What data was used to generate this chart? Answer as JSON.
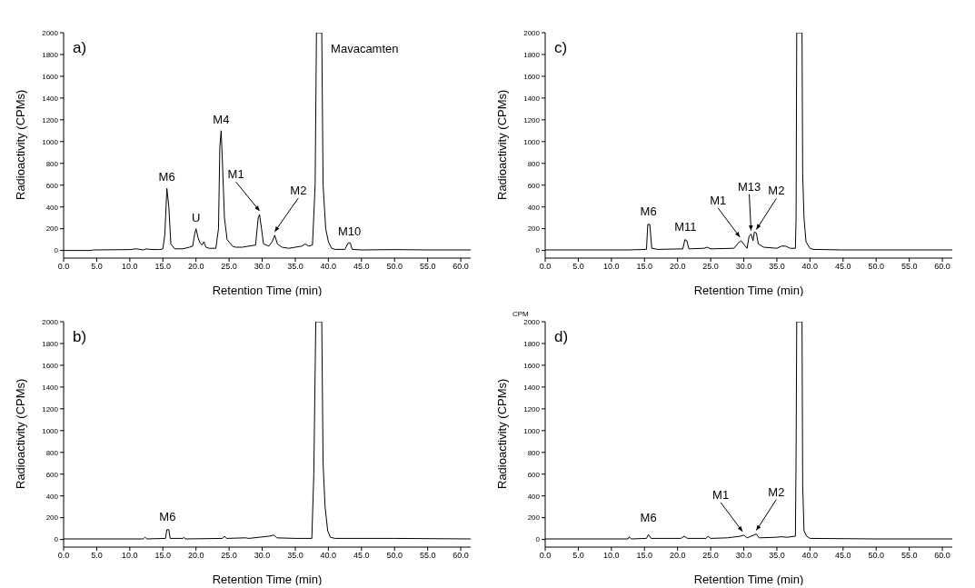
{
  "chart_data": [
    {
      "type": "line",
      "color": "#000000",
      "marker": "none",
      "xlabel": "Retention Time (min)",
      "ylabel": "Radioactivity (CPMs)",
      "xlim": [
        0,
        61.5
      ],
      "ylim": [
        -70,
        2000
      ],
      "xticks": [
        {
          "value": 0,
          "label": "0.0"
        },
        {
          "value": 5,
          "label": "5.0"
        },
        {
          "value": 10,
          "label": "10.0"
        },
        {
          "value": 15,
          "label": "15.0"
        },
        {
          "value": 20,
          "label": "20.0"
        },
        {
          "value": 25,
          "label": "25.0"
        },
        {
          "value": 30,
          "label": "30.0"
        },
        {
          "value": 35,
          "label": "35.0"
        },
        {
          "value": 40,
          "label": "40.0"
        },
        {
          "value": 45,
          "label": "45.0"
        },
        {
          "value": 50,
          "label": "50.0"
        },
        {
          "value": 55,
          "label": "55.0"
        },
        {
          "value": 60,
          "label": "60.0"
        }
      ],
      "yticks": [
        0,
        200,
        400,
        600,
        800,
        1000,
        1200,
        1400,
        1600,
        1800,
        2000
      ],
      "x": [
        0,
        4,
        4.5,
        10,
        11,
        12,
        12.5,
        13,
        14.5,
        15,
        15.3,
        15.6,
        15.9,
        16.2,
        16.8,
        18,
        19,
        19.5,
        19.8,
        20,
        20.3,
        20.6,
        20.9,
        21.2,
        21.5,
        22,
        23,
        23.4,
        23.6,
        23.8,
        24,
        24.3,
        24.7,
        25.5,
        26,
        27,
        28,
        29,
        29.4,
        29.6,
        29.9,
        30.2,
        31,
        31.5,
        31.9,
        32.3,
        33,
        34,
        35,
        36,
        36.5,
        37,
        37.6,
        38,
        38.2,
        39,
        39.2,
        39.6,
        40,
        40.5,
        41,
        42.5,
        43,
        43.3,
        43.6,
        45,
        50,
        55,
        61.5
      ],
      "values": [
        0,
        0,
        5,
        8,
        15,
        5,
        15,
        10,
        8,
        15,
        150,
        570,
        400,
        60,
        15,
        15,
        30,
        40,
        150,
        200,
        120,
        70,
        50,
        80,
        30,
        20,
        20,
        200,
        950,
        1100,
        800,
        300,
        100,
        40,
        30,
        30,
        40,
        50,
        300,
        330,
        200,
        60,
        40,
        80,
        140,
        60,
        30,
        20,
        30,
        40,
        60,
        40,
        50,
        600,
        2000,
        2000,
        600,
        200,
        80,
        20,
        10,
        10,
        70,
        70,
        10,
        5,
        8,
        5,
        5
      ],
      "annotations": [
        "a)",
        {
          "text": "M6",
          "x": 15.6,
          "y": 570
        },
        {
          "text": "U",
          "x": 20,
          "y": 200
        },
        {
          "text": "M4",
          "x": 23.8,
          "y": 1100
        },
        {
          "text": "M1",
          "x": 29.6,
          "y": 330
        },
        {
          "text": "M2",
          "x": 31.9,
          "y": 140
        },
        {
          "text": "Mavacamten",
          "x": 39,
          "y": 2000
        },
        {
          "text": "M10",
          "x": 43.2,
          "y": 70
        }
      ]
    },
    {
      "type": "line",
      "color": "#000000",
      "marker": "none",
      "xlabel": "Retention Time (min)",
      "ylabel": "Radioactivity (CPMs)",
      "xlim": [
        0,
        61.5
      ],
      "ylim": [
        -70,
        2000
      ],
      "xticks": [
        {
          "value": 0,
          "label": "0.0"
        },
        {
          "value": 5,
          "label": "5.0"
        },
        {
          "value": 10,
          "label": "10.0"
        },
        {
          "value": 15,
          "label": "15.0"
        },
        {
          "value": 20,
          "label": "20.0"
        },
        {
          "value": 25,
          "label": "25.0"
        },
        {
          "value": 30,
          "label": "30.0"
        },
        {
          "value": 35,
          "label": "35.0"
        },
        {
          "value": 40,
          "label": "40.0"
        },
        {
          "value": 45,
          "label": "45.0"
        },
        {
          "value": 50,
          "label": "50.0"
        },
        {
          "value": 55,
          "label": "55.0"
        },
        {
          "value": 60,
          "label": "60.0"
        }
      ],
      "yticks": [
        0,
        200,
        400,
        600,
        800,
        1000,
        1200,
        1400,
        1600,
        1800,
        2000
      ],
      "x": [
        0,
        12.5,
        15.3,
        15.5,
        15.8,
        16.1,
        17,
        20.8,
        21.1,
        21.4,
        21.7,
        24,
        24.5,
        25,
        28.5,
        29.2,
        29.6,
        30.1,
        30.5,
        30.8,
        31.1,
        31.4,
        31.6,
        31.9,
        32.2,
        33,
        35,
        35.7,
        36.3,
        37,
        37.8,
        37.9,
        38,
        38.8,
        38.9,
        39.1,
        39.4,
        40,
        40.5,
        45,
        61.5
      ],
      "values": [
        5,
        5,
        10,
        240,
        240,
        20,
        10,
        15,
        100,
        90,
        15,
        20,
        30,
        15,
        20,
        70,
        90,
        50,
        20,
        130,
        150,
        90,
        170,
        160,
        60,
        30,
        20,
        40,
        40,
        20,
        20,
        300,
        2000,
        2000,
        700,
        300,
        80,
        20,
        10,
        5,
        5
      ],
      "annotations": [
        "c)",
        {
          "text": "M6",
          "x": 15.6,
          "y": 240
        },
        {
          "text": "M11",
          "x": 21.2,
          "y": 100
        },
        {
          "text": "M1",
          "x": 29.4,
          "y": 90
        },
        {
          "text": "M13",
          "x": 31.1,
          "y": 150
        },
        {
          "text": "M2",
          "x": 31.9,
          "y": 160
        }
      ]
    },
    {
      "type": "line",
      "color": "#000000",
      "marker": "none",
      "xlabel": "Retention Time (min)",
      "ylabel": "Radioactivity (CPMs)",
      "xlim": [
        0,
        61.5
      ],
      "ylim": [
        -70,
        2000
      ],
      "xticks": [
        {
          "value": 0,
          "label": "0.0"
        },
        {
          "value": 5,
          "label": "5.0"
        },
        {
          "value": 10,
          "label": "10.0"
        },
        {
          "value": 15,
          "label": "15.0"
        },
        {
          "value": 20,
          "label": "20.0"
        },
        {
          "value": 25,
          "label": "25.0"
        },
        {
          "value": 30,
          "label": "30.0"
        },
        {
          "value": 35,
          "label": "35.0"
        },
        {
          "value": 40,
          "label": "40.0"
        },
        {
          "value": 45,
          "label": "45.0"
        },
        {
          "value": 50,
          "label": "50.0"
        },
        {
          "value": 55,
          "label": "55.0"
        },
        {
          "value": 60,
          "label": "60.0"
        }
      ],
      "yticks": [
        0,
        200,
        400,
        600,
        800,
        1000,
        1200,
        1400,
        1600,
        1800,
        2000
      ],
      "x": [
        0,
        12,
        12.3,
        12.6,
        15.4,
        15.6,
        15.9,
        16.1,
        18,
        18.2,
        18.4,
        24,
        24.3,
        24.6,
        27.5,
        28,
        29.5,
        31,
        31.8,
        32.2,
        35,
        37.5,
        37.8,
        38.1,
        39,
        39.2,
        39.5,
        39.9,
        40.3,
        41,
        50,
        61.5
      ],
      "values": [
        5,
        5,
        20,
        5,
        10,
        90,
        90,
        10,
        10,
        20,
        5,
        10,
        30,
        10,
        15,
        10,
        20,
        30,
        40,
        15,
        10,
        10,
        600,
        2000,
        2000,
        700,
        300,
        80,
        20,
        10,
        10,
        5
      ],
      "annotations": [
        "b)",
        {
          "text": "M6",
          "x": 15.7,
          "y": 90
        }
      ]
    },
    {
      "type": "line",
      "color": "#000000",
      "marker": "none",
      "xlabel": "Retention Time (min)",
      "ylabel": "Radioactivity (CPMs)",
      "xlim": [
        0,
        61.5
      ],
      "ylim": [
        -70,
        2000
      ],
      "xticks": [
        {
          "value": 0,
          "label": "0.0"
        },
        {
          "value": 5,
          "label": "5.0"
        },
        {
          "value": 10,
          "label": "10.0"
        },
        {
          "value": 15,
          "label": "15.0"
        },
        {
          "value": 20,
          "label": "20.0"
        },
        {
          "value": 25,
          "label": "25.0"
        },
        {
          "value": 30,
          "label": "30.0"
        },
        {
          "value": 35,
          "label": "35.0"
        },
        {
          "value": 40,
          "label": "40.0"
        },
        {
          "value": 45,
          "label": "45.0"
        },
        {
          "value": 50,
          "label": "50.0"
        },
        {
          "value": 55,
          "label": "55.0"
        },
        {
          "value": 60,
          "label": "60.0"
        }
      ],
      "yticks": [
        0,
        200,
        400,
        600,
        800,
        1000,
        1200,
        1400,
        1600,
        1800,
        2000
      ],
      "x": [
        0,
        12.5,
        12.7,
        13,
        15.3,
        15.6,
        16,
        20.5,
        21,
        21.5,
        24.3,
        24.6,
        25,
        27.5,
        29.5,
        30,
        30.5,
        31.5,
        31.9,
        32.3,
        34.8,
        35.7,
        36.5,
        37.8,
        37.9,
        38,
        38.8,
        38.9,
        39.1,
        39.5,
        40,
        50,
        61.5
      ],
      "values": [
        5,
        5,
        25,
        5,
        10,
        45,
        10,
        10,
        30,
        10,
        10,
        30,
        10,
        15,
        30,
        40,
        15,
        40,
        50,
        15,
        20,
        25,
        20,
        30,
        750,
        2000,
        2000,
        500,
        80,
        30,
        10,
        5,
        5
      ],
      "annotations": [
        "d)",
        "CPM",
        {
          "text": "M6",
          "x": 15.6,
          "y": 45
        },
        {
          "text": "M1",
          "x": 29.8,
          "y": 40
        },
        {
          "text": "M2",
          "x": 31.9,
          "y": 50
        }
      ]
    }
  ]
}
